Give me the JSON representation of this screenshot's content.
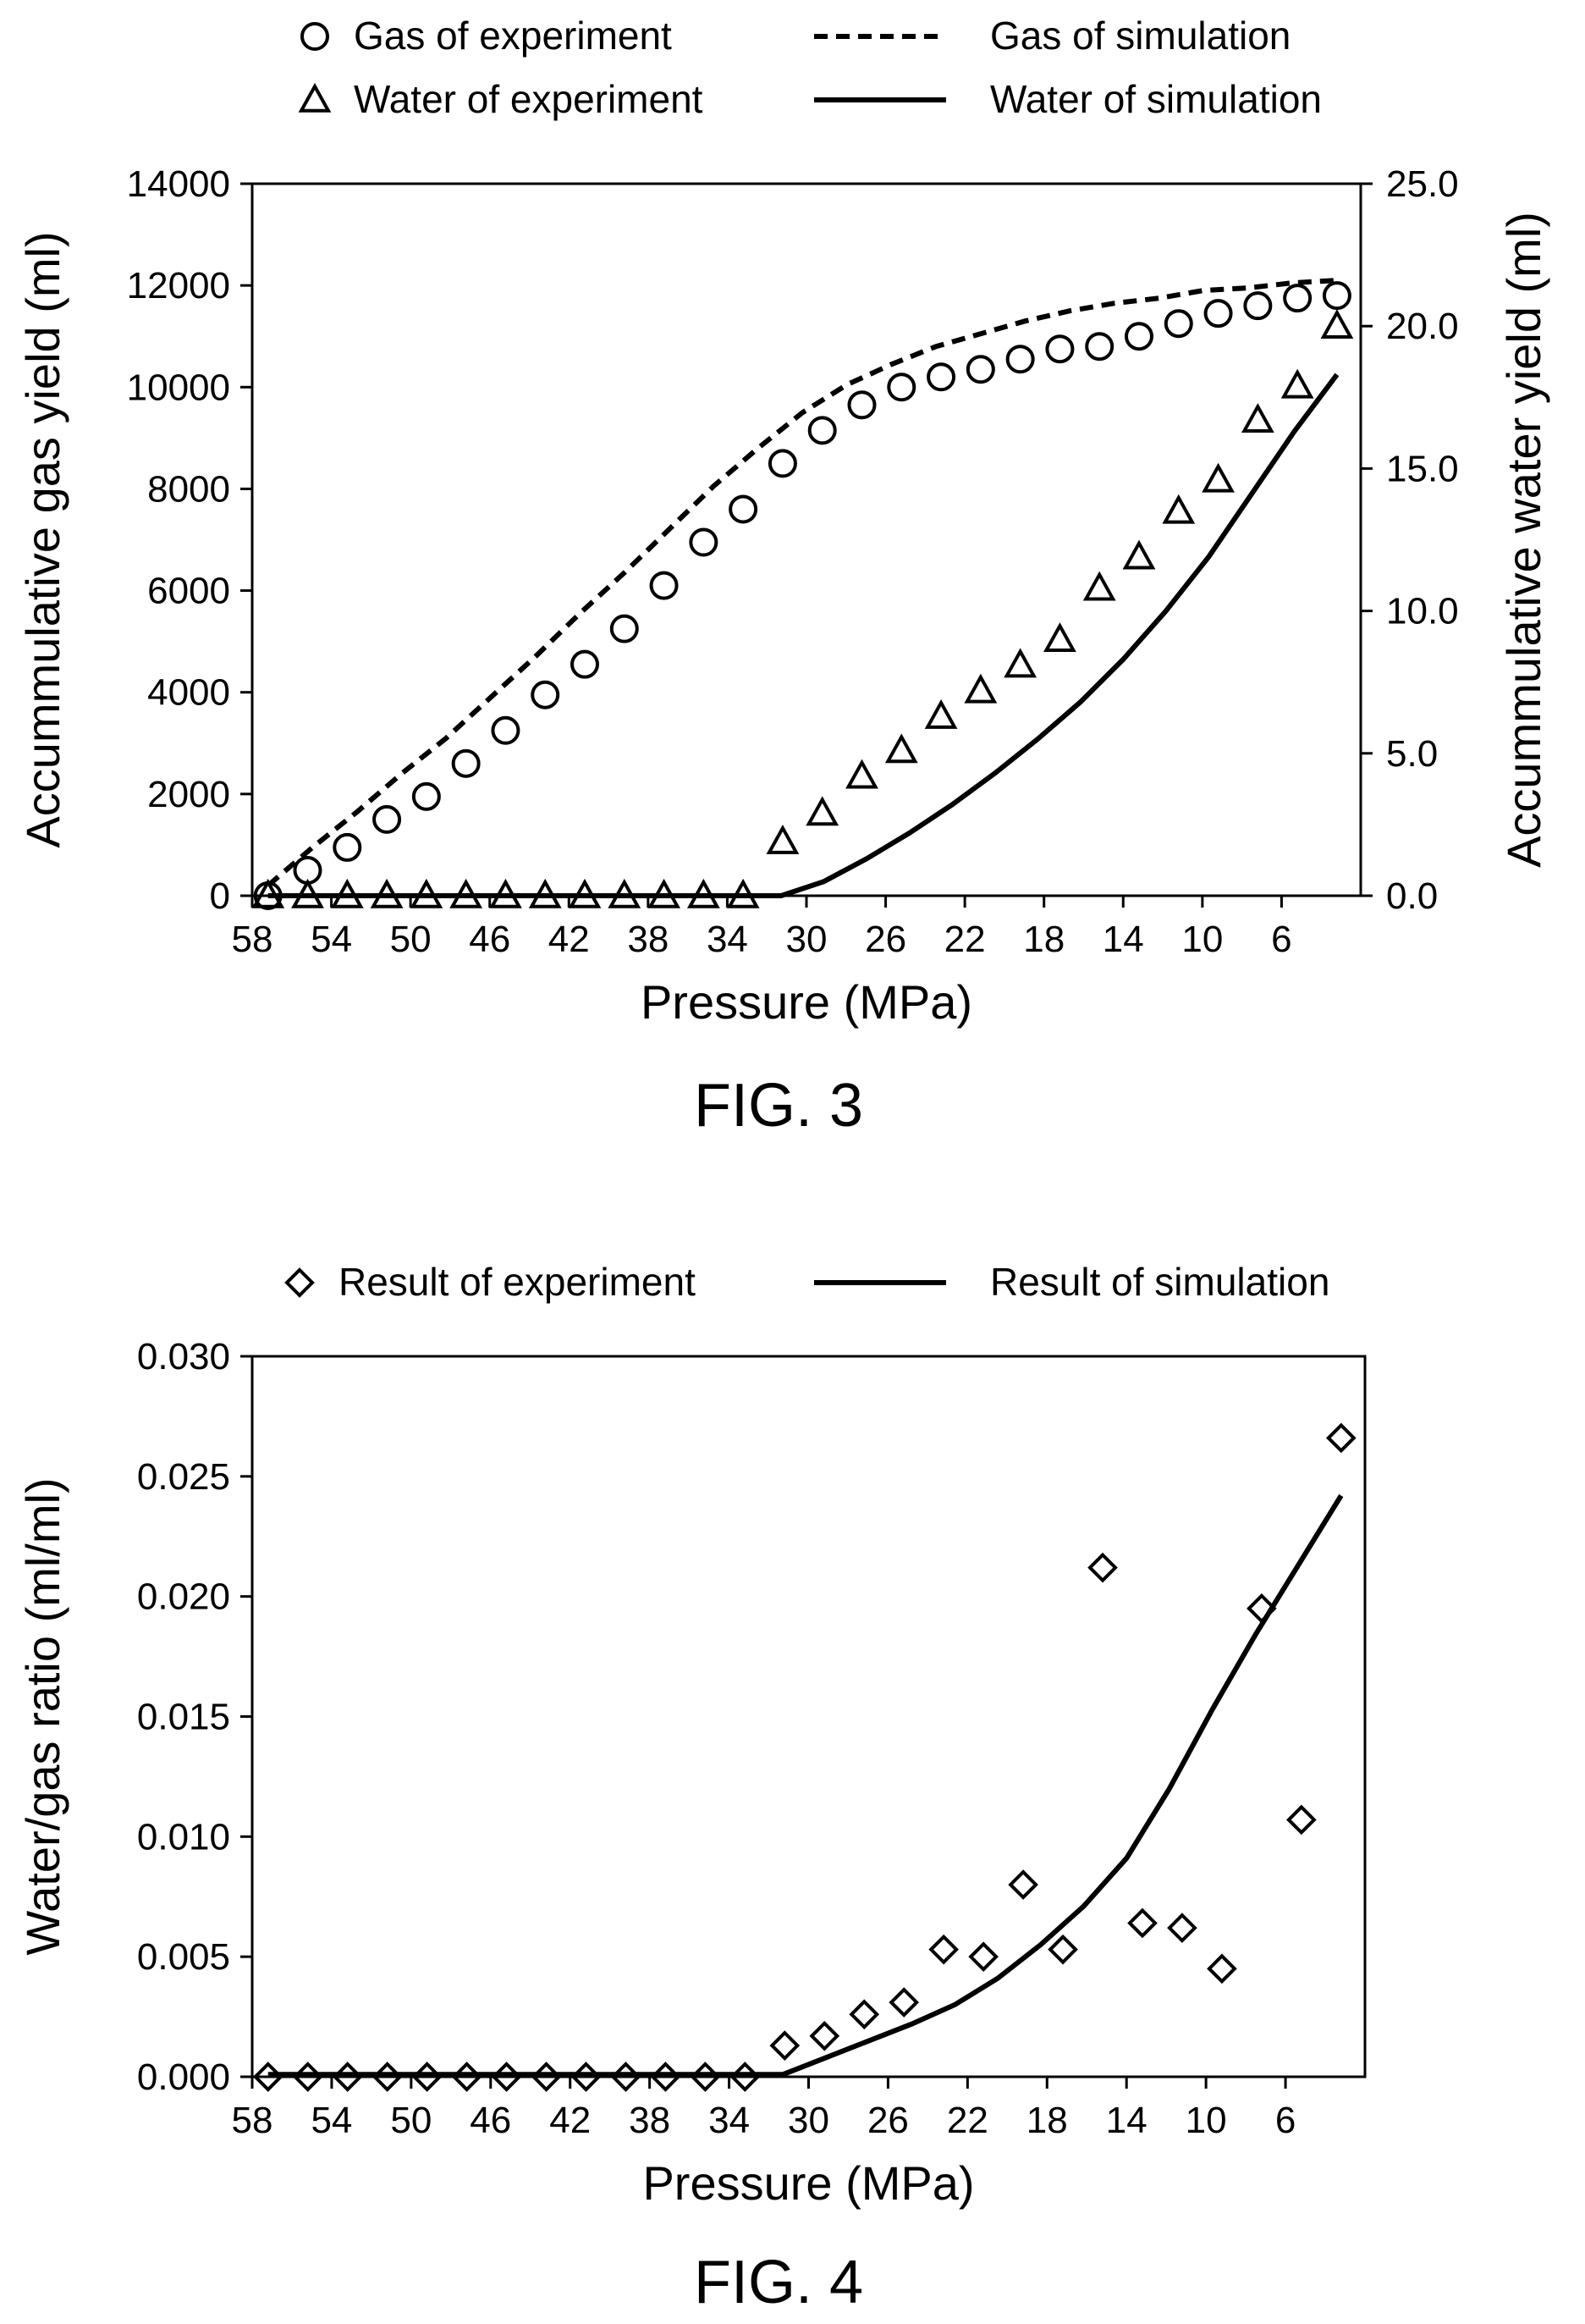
{
  "figures": [
    {
      "caption": "FIG. 3"
    },
    {
      "caption": "FIG. 4"
    }
  ],
  "chart_data": [
    {
      "type": "scatter",
      "caption": "FIG. 3",
      "xlabel": "Pressure (MPa)",
      "ylabel": "Accummulative gas yield (ml)",
      "y2label": "Accummulative water yield (ml)",
      "x_ticks": [
        "58",
        "54",
        "50",
        "46",
        "42",
        "38",
        "34",
        "30",
        "26",
        "22",
        "18",
        "14",
        "10",
        "6"
      ],
      "xlim": [
        58,
        2
      ],
      "xscale": "category",
      "ylim": [
        0,
        14000
      ],
      "y_ticks": [
        "0",
        "2000",
        "4000",
        "6000",
        "8000",
        "10000",
        "12000",
        "14000"
      ],
      "y2lim": [
        0,
        25
      ],
      "y2_ticks": [
        "0.0",
        "5.0",
        "10.0",
        "15.0",
        "20.0",
        "25.0"
      ],
      "legend_position": "top",
      "grid": false,
      "x": [
        57.2,
        55.2,
        53.2,
        51.2,
        49.2,
        47.2,
        45.2,
        43.2,
        41.2,
        39.2,
        37.2,
        35.2,
        33.2,
        31.2,
        29.2,
        27.2,
        25.2,
        23.2,
        21.2,
        19.2,
        17.2,
        15.2,
        13.2,
        11.2,
        9.2,
        7.2,
        5.2,
        3.2
      ],
      "series": [
        {
          "name": "Gas of experiment",
          "marker": "circle",
          "axis": "left",
          "values": [
            0,
            500,
            950,
            1500,
            1950,
            2600,
            3250,
            3950,
            4550,
            5250,
            6100,
            6950,
            7600,
            8500,
            9150,
            9650,
            10000,
            10200,
            10350,
            10550,
            10750,
            10800,
            11000,
            11250,
            11450,
            11600,
            11750,
            11800
          ]
        },
        {
          "name": "Water of experiment",
          "marker": "triangle",
          "axis": "right",
          "values": [
            0,
            0,
            0,
            0,
            0,
            0,
            0,
            0,
            0,
            0,
            0,
            0,
            0,
            1.9,
            2.9,
            4.2,
            5.1,
            6.3,
            7.2,
            8.1,
            9.0,
            10.8,
            11.9,
            13.5,
            14.6,
            16.7,
            17.9,
            20.0
          ]
        },
        {
          "name": "Gas of simulation",
          "line": "dashed",
          "axis": "left",
          "values": [
            200,
            950,
            1650,
            2400,
            3100,
            3900,
            4700,
            5550,
            6350,
            7200,
            8050,
            8800,
            9500,
            10050,
            10450,
            10800,
            11050,
            11300,
            11500,
            11650,
            11750,
            11900,
            11950,
            12050,
            12100
          ]
        },
        {
          "name": "Water of simulation",
          "line": "solid",
          "axis": "right",
          "values": [
            0,
            0,
            0,
            0,
            0,
            0,
            0,
            0,
            0,
            0,
            0,
            0,
            0,
            0.5,
            1.3,
            2.2,
            3.2,
            4.3,
            5.5,
            6.8,
            8.3,
            10.0,
            11.9,
            14.1,
            16.3,
            18.3
          ]
        }
      ]
    },
    {
      "type": "scatter",
      "caption": "FIG. 4",
      "xlabel": "Pressure (MPa)",
      "ylabel": "Water/gas ratio (ml/ml)",
      "x_ticks": [
        "58",
        "54",
        "50",
        "46",
        "42",
        "38",
        "34",
        "30",
        "26",
        "22",
        "18",
        "14",
        "10",
        "6"
      ],
      "xlim": [
        58,
        2
      ],
      "xscale": "category",
      "ylim": [
        0,
        0.03
      ],
      "y_ticks": [
        "0.000",
        "0.005",
        "0.010",
        "0.015",
        "0.020",
        "0.025",
        "0.030"
      ],
      "legend_position": "top",
      "grid": false,
      "x": [
        57.2,
        55.2,
        53.2,
        51.2,
        49.2,
        47.2,
        45.2,
        43.2,
        41.2,
        39.2,
        37.2,
        35.2,
        33.2,
        31.2,
        29.2,
        27.2,
        25.2,
        23.2,
        21.2,
        19.2,
        17.2,
        15.2,
        13.2,
        11.2,
        9.2,
        7.2,
        5.2,
        3.2
      ],
      "series": [
        {
          "name": "Result of experiment",
          "marker": "diamond",
          "values": [
            0,
            0,
            0,
            0,
            0,
            0,
            0,
            0,
            0,
            0,
            0,
            0,
            0,
            0.0013,
            0.0017,
            0.0026,
            0.0031,
            0.0053,
            0.005,
            0.008,
            0.0053,
            0.0212,
            0.0064,
            0.0062,
            0.0045,
            0.0195,
            0.0107,
            0.0266
          ]
        },
        {
          "name": "Result of simulation",
          "line": "solid",
          "values": [
            0.0001,
            0.0001,
            0.0001,
            0.0001,
            0.0001,
            0.0001,
            0.0001,
            0.0001,
            0.0001,
            0.0001,
            0.0001,
            0.0001,
            0.0001,
            0.0008,
            0.0015,
            0.0022,
            0.003,
            0.0041,
            0.0055,
            0.0071,
            0.0091,
            0.012,
            0.0153,
            0.0184,
            0.0213,
            0.0242
          ]
        }
      ]
    }
  ]
}
